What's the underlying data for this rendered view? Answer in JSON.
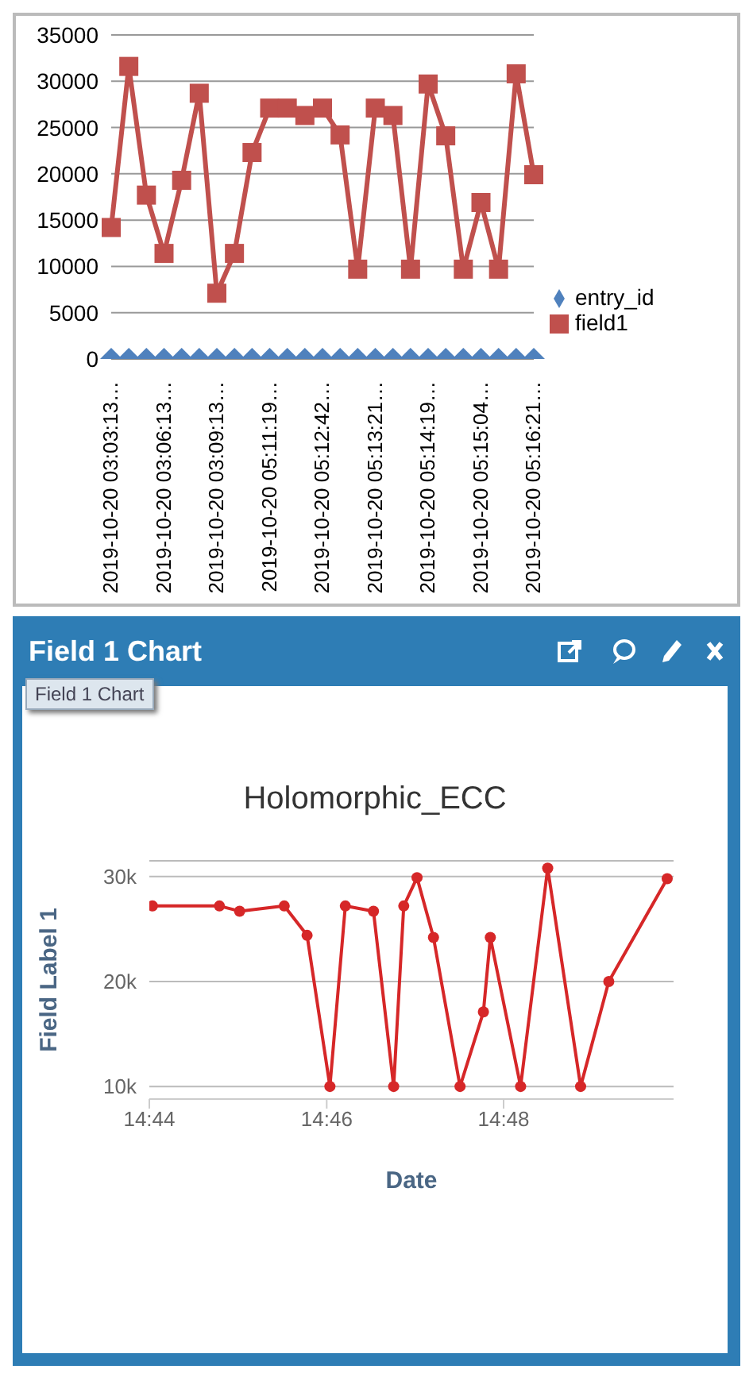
{
  "chart_data": [
    {
      "type": "line",
      "categories": [
        "2019-10-20 03:03:13…",
        null,
        null,
        "2019-10-20 03:06:13…",
        null,
        null,
        "2019-10-20 03:09:13…",
        null,
        null,
        "2019-10-20 05:11:19…",
        null,
        null,
        "2019-10-20 05:12:42…",
        null,
        null,
        "2019-10-20 05:13:21…",
        null,
        null,
        "2019-10-20 05:14:19…",
        null,
        null,
        "2019-10-20 05:15:04…",
        null,
        null,
        "2019-10-20 05:16:21…"
      ],
      "series": [
        {
          "name": "entry_id",
          "color": "#4f81bd",
          "marker": "diamond",
          "values": [
            0,
            0,
            0,
            0,
            0,
            0,
            0,
            0,
            0,
            0,
            0,
            0,
            0,
            0,
            0,
            0,
            0,
            0,
            0,
            0,
            0,
            0,
            0,
            0,
            0
          ]
        },
        {
          "name": "field1",
          "color": "#c0504d",
          "marker": "square",
          "values": [
            14200,
            31600,
            17700,
            11400,
            19300,
            28700,
            7100,
            11400,
            22300,
            27100,
            27100,
            26300,
            27100,
            24200,
            9700,
            27100,
            26300,
            9700,
            29700,
            24100,
            9700,
            16900,
            9700,
            30800,
            19900
          ]
        }
      ],
      "ylim": [
        0,
        35000
      ],
      "yticks": [
        0,
        5000,
        10000,
        15000,
        20000,
        25000,
        30000,
        35000
      ],
      "grid": "y",
      "legend": "right",
      "line_style": "solid"
    },
    {
      "type": "line",
      "title": "Field 1 Chart",
      "subtitle": "Holomorphic_ECC",
      "xlabel": "Date",
      "ylabel": "Field Label 1",
      "annotations": [
        "Field 1 Chart"
      ],
      "x": [
        14.7339,
        14.7465,
        14.7503,
        14.7587,
        14.763,
        14.7673,
        14.7702,
        14.7755,
        14.7793,
        14.7812,
        14.7837,
        14.7868,
        14.7918,
        14.7962,
        14.7975,
        14.8032,
        14.8083,
        14.8145,
        14.8198,
        14.8308
      ],
      "series": [
        {
          "color": "#d62728",
          "values": [
            27200,
            27200,
            26700,
            27200,
            24400,
            10000,
            27200,
            26700,
            10000,
            27200,
            29900,
            24200,
            10000,
            17100,
            24200,
            10000,
            30800,
            10000,
            20000,
            29800
          ]
        }
      ],
      "xlim": [
        14.7333,
        14.832
      ],
      "xticks": [
        {
          "value": 14.7333,
          "label": "14:44"
        },
        {
          "value": 14.7667,
          "label": "14:46"
        },
        {
          "value": 14.8,
          "label": "14:48"
        }
      ],
      "ylim": [
        8800,
        31500
      ],
      "yticks": [
        {
          "value": 10000,
          "label": "10k"
        },
        {
          "value": 20000,
          "label": "20k"
        },
        {
          "value": 30000,
          "label": "30k"
        }
      ],
      "grid": "y",
      "legend": false,
      "marker": "circle",
      "line_style": "solid"
    }
  ]
}
